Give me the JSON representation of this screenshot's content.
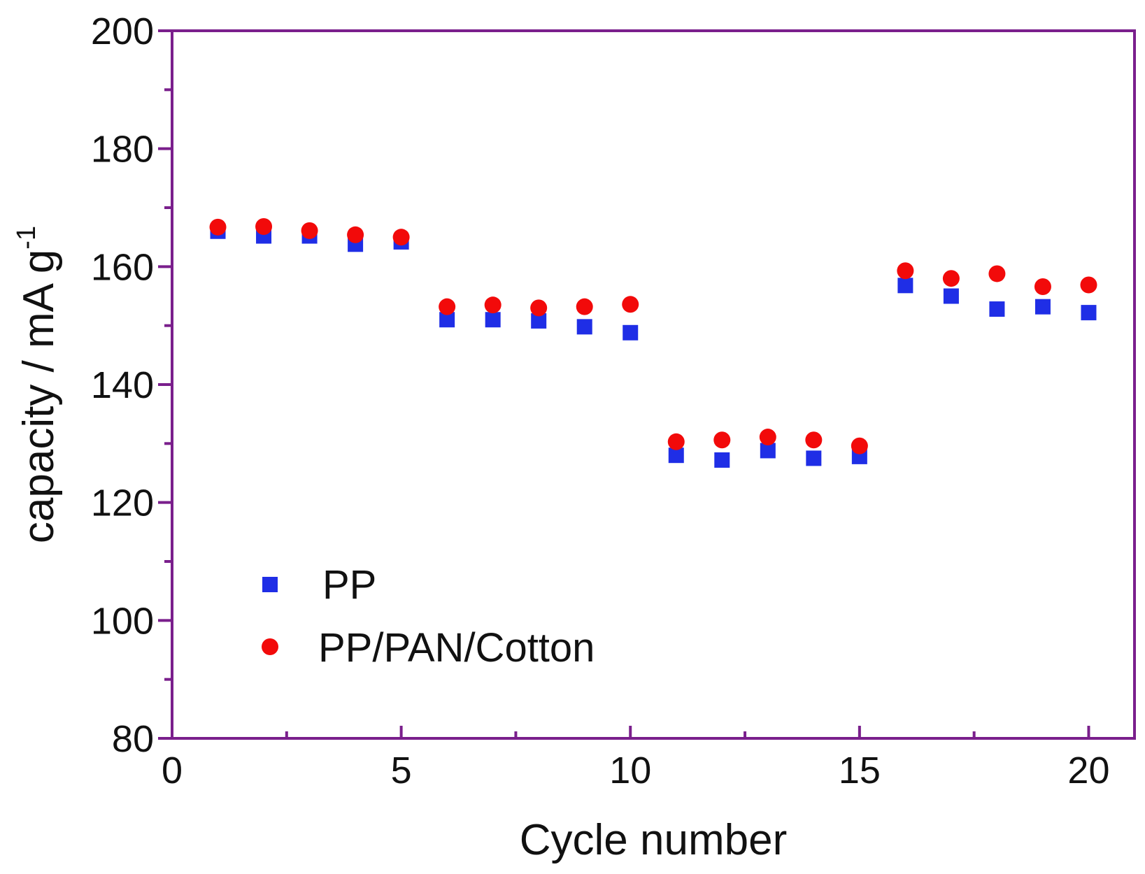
{
  "chart_data": {
    "type": "scatter",
    "title": "",
    "xlabel": "Cycle number",
    "ylabel": "capacity / mA g",
    "ylabel_superscript": "-1",
    "xlim": [
      0,
      21
    ],
    "ylim": [
      80,
      200
    ],
    "x_ticks": [
      0,
      5,
      10,
      15,
      20
    ],
    "x_minor_ticks": [
      2.5,
      7.5,
      12.5,
      17.5
    ],
    "y_ticks": [
      80,
      100,
      120,
      140,
      160,
      180,
      200
    ],
    "y_minor_ticks": [
      90,
      110,
      130,
      150,
      170,
      190
    ],
    "x_tick_labels": [
      "0",
      "5",
      "10",
      "15",
      "20"
    ],
    "y_tick_labels": [
      "80",
      "100",
      "120",
      "140",
      "160",
      "180",
      "200"
    ],
    "grid": false,
    "legend_position": "lower-left",
    "frame_color": "#7a1f8c",
    "series": [
      {
        "name": "PP",
        "marker": "square",
        "color": "#1f2ee6",
        "x": [
          1,
          2,
          3,
          4,
          5,
          6,
          7,
          8,
          9,
          10,
          11,
          12,
          13,
          14,
          15,
          16,
          17,
          18,
          19,
          20
        ],
        "values": [
          166.0,
          165.2,
          165.2,
          163.8,
          164.2,
          151.0,
          151.0,
          150.8,
          149.8,
          148.8,
          128.0,
          127.2,
          128.8,
          127.5,
          127.8,
          156.8,
          155.0,
          152.8,
          153.2,
          152.2
        ]
      },
      {
        "name": "PP/PAN/Cotton",
        "marker": "circle",
        "color": "#f20a0a",
        "x": [
          1,
          2,
          3,
          4,
          5,
          6,
          7,
          8,
          9,
          10,
          11,
          12,
          13,
          14,
          15,
          16,
          17,
          18,
          19,
          20
        ],
        "values": [
          166.7,
          166.8,
          166.1,
          165.4,
          165.0,
          153.2,
          153.5,
          153.0,
          153.2,
          153.6,
          130.3,
          130.6,
          131.1,
          130.6,
          129.6,
          159.3,
          158.0,
          158.8,
          156.6,
          156.9
        ]
      }
    ]
  }
}
